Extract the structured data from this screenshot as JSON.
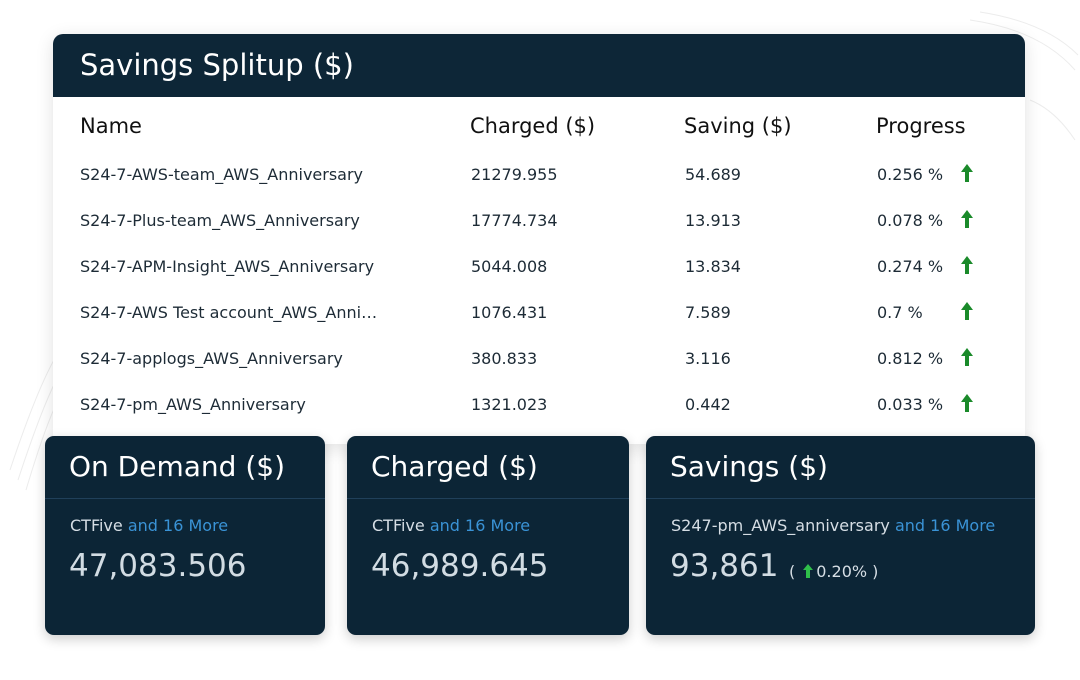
{
  "header": {
    "title": "Savings Splitup ($)"
  },
  "table": {
    "columns": [
      "Name",
      "Charged ($)",
      "Saving ($)",
      "Progress"
    ],
    "rows": [
      [
        "S24-7-AWS-team_AWS_Anniversary",
        "21279.955",
        "54.689",
        "0.256 %"
      ],
      [
        "S24-7-Plus-team_AWS_Anniversary",
        "17774.734",
        "13.913",
        "0.078 %"
      ],
      [
        "S24-7-APM-Insight_AWS_Anniversary",
        "5044.008",
        "13.834",
        "0.274 %"
      ],
      [
        "S24-7-AWS Test account_AWS_Anni…",
        "1076.431",
        "7.589",
        "0.7 %"
      ],
      [
        "S24-7-applogs_AWS_Anniversary",
        "380.833",
        "3.116",
        "0.812 %"
      ],
      [
        "S24-7-pm_AWS_Anniversary",
        "1321.023",
        "0.442",
        "0.033 %"
      ]
    ]
  },
  "cards": [
    {
      "title": "On Demand ($)",
      "source": "CTFive",
      "more": "and 16 More",
      "value": "47,083.506"
    },
    {
      "title": "Charged ($)",
      "source": "CTFive",
      "more": "and 16 More",
      "value": "46,989.645"
    },
    {
      "title": "Savings ($)",
      "source": "S247-pm_AWS_anniversary",
      "more": "and 16 More",
      "value": "93,861",
      "change": {
        "open": "(",
        "value": "0.20%",
        "close": ")"
      }
    }
  ]
}
